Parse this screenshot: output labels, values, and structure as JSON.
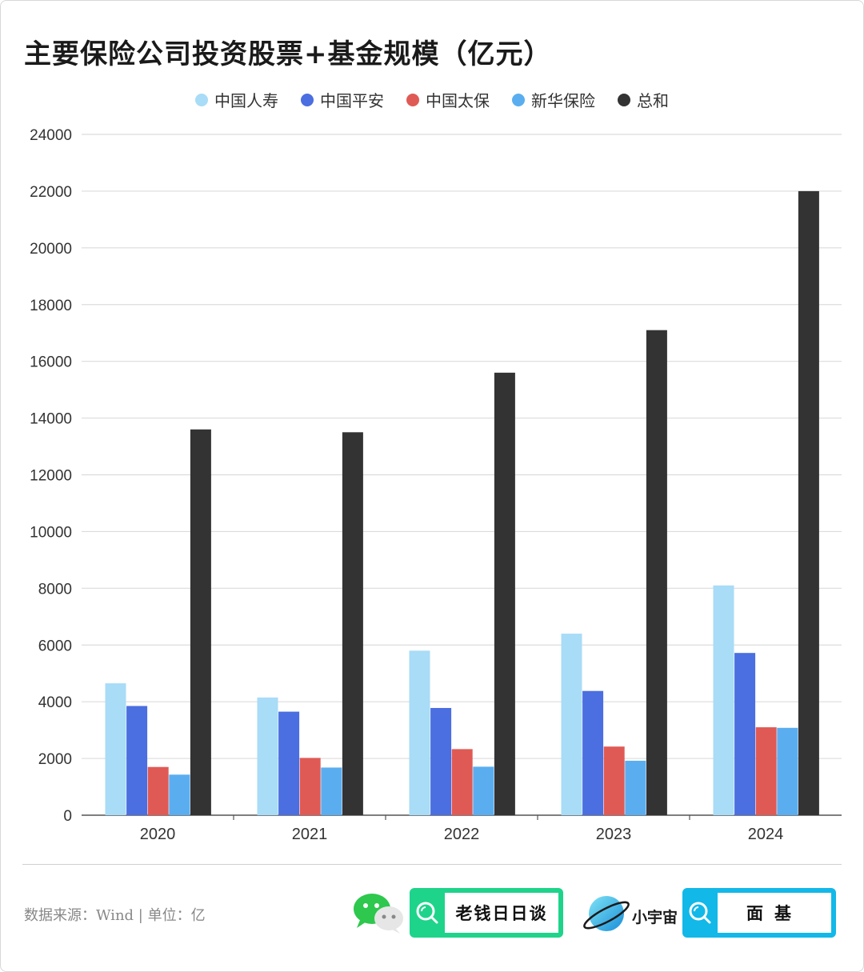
{
  "title": "主要保险公司投资股票+基金规模（亿元）",
  "legend": [
    {
      "name": "中国人寿",
      "color": "#a8dcf7"
    },
    {
      "name": "中国平安",
      "color": "#4b6ee0"
    },
    {
      "name": "中国太保",
      "color": "#e05a55"
    },
    {
      "name": "新华保险",
      "color": "#5aaef0"
    },
    {
      "name": "总和",
      "color": "#333333"
    }
  ],
  "chart_data": {
    "type": "bar",
    "title": "主要保险公司投资股票+基金规模（亿元）",
    "categories": [
      "2020",
      "2021",
      "2022",
      "2023",
      "2024"
    ],
    "ylim": [
      0,
      24000
    ],
    "yticks": [
      0,
      2000,
      4000,
      6000,
      8000,
      10000,
      12000,
      14000,
      16000,
      18000,
      20000,
      22000,
      24000
    ],
    "grid": true,
    "legend_position": "top-center",
    "series": [
      {
        "name": "中国人寿",
        "color": "#a8dcf7",
        "values": [
          4650,
          4150,
          5800,
          6400,
          8100
        ]
      },
      {
        "name": "中国平安",
        "color": "#4b6ee0",
        "values": [
          3850,
          3650,
          3780,
          4380,
          5720
        ]
      },
      {
        "name": "中国太保",
        "color": "#e05a55",
        "values": [
          1700,
          2020,
          2330,
          2420,
          3100
        ]
      },
      {
        "name": "新华保险",
        "color": "#5aaef0",
        "values": [
          1430,
          1680,
          1710,
          1920,
          3080
        ]
      },
      {
        "name": "总和",
        "color": "#333333",
        "values": [
          13600,
          13500,
          15600,
          17100,
          22000
        ]
      }
    ]
  },
  "footer": {
    "source": "数据来源：Wind | 单位：亿",
    "badge1_text": "老钱日日谈",
    "brand2_name": "小宇宙",
    "badge2_text": "面基",
    "wechat_icon": "wechat-icon",
    "search_icon": "search-icon",
    "planet_icon": "planet-icon"
  }
}
